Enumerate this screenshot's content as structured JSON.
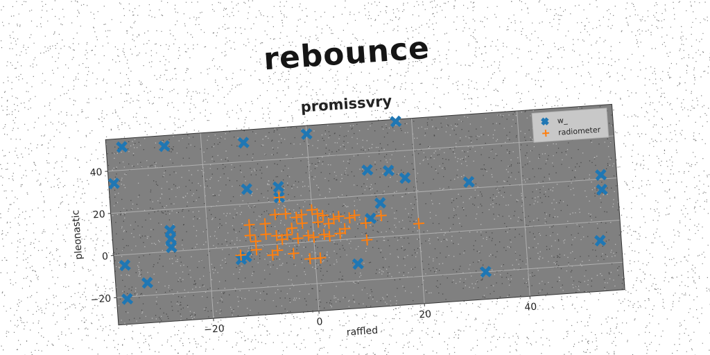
{
  "figure": {
    "suptitle": "rebounce"
  },
  "chart_data": {
    "type": "scatter",
    "title": "promissvry",
    "xlabel": "raffled",
    "ylabel": "pleonastic",
    "xlim": [
      -38,
      58
    ],
    "ylim": [
      -33,
      55
    ],
    "xticks": [
      -20,
      0,
      20,
      40
    ],
    "yticks": [
      -20,
      0,
      20,
      40
    ],
    "grid": true,
    "legend_position": "top-right",
    "axes_facecolor": "#808080",
    "series": [
      {
        "name": "w_",
        "marker": "x",
        "color": "#1f77b4",
        "points": [
          [
            -35,
            51
          ],
          [
            -27,
            50
          ],
          [
            -12,
            49
          ],
          [
            0,
            51
          ],
          [
            17,
            54
          ],
          [
            -37,
            34
          ],
          [
            11,
            32
          ],
          [
            15,
            31
          ],
          [
            18,
            27
          ],
          [
            30,
            23
          ],
          [
            55,
            22
          ],
          [
            55,
            15
          ],
          [
            -12,
            27
          ],
          [
            -6,
            27
          ],
          [
            -6,
            22
          ],
          [
            13,
            16
          ],
          [
            11,
            9
          ],
          [
            -27,
            10
          ],
          [
            -27,
            6
          ],
          [
            -27,
            2
          ],
          [
            -36,
            -5
          ],
          [
            -13,
            -5
          ],
          [
            -14,
            -6
          ],
          [
            -32,
            -14
          ],
          [
            -36,
            -21
          ],
          [
            8,
            -12
          ],
          [
            32,
            -20
          ],
          [
            54,
            -9
          ]
        ]
      },
      {
        "name": "radiometer",
        "marker": "+",
        "color": "#ff7f0e",
        "points": [
          [
            -6,
            22
          ],
          [
            0,
            15
          ],
          [
            -7,
            14
          ],
          [
            -5,
            14
          ],
          [
            -2,
            13
          ],
          [
            1,
            13
          ],
          [
            -3,
            12
          ],
          [
            2,
            12
          ],
          [
            5,
            11
          ],
          [
            8,
            11
          ],
          [
            -12,
            10
          ],
          [
            -9,
            10
          ],
          [
            4,
            10
          ],
          [
            7,
            10
          ],
          [
            13,
            10
          ],
          [
            -2,
            9
          ],
          [
            1,
            9
          ],
          [
            3,
            8
          ],
          [
            -4,
            7
          ],
          [
            10,
            7
          ],
          [
            -12,
            5
          ],
          [
            -9,
            5
          ],
          [
            -7,
            4
          ],
          [
            -5,
            4
          ],
          [
            -1,
            3
          ],
          [
            2,
            3
          ],
          [
            5,
            3
          ],
          [
            -11,
            2
          ],
          [
            -6,
            2
          ],
          [
            -3,
            2
          ],
          [
            0,
            2
          ],
          [
            3,
            2
          ],
          [
            20,
            5
          ],
          [
            6,
            5
          ],
          [
            -11,
            -2
          ],
          [
            -7,
            -3
          ],
          [
            10,
            -1
          ],
          [
            -14,
            -4
          ],
          [
            -8,
            -5
          ],
          [
            -4,
            -5
          ],
          [
            -1,
            -8
          ],
          [
            1,
            -8
          ]
        ]
      }
    ]
  }
}
